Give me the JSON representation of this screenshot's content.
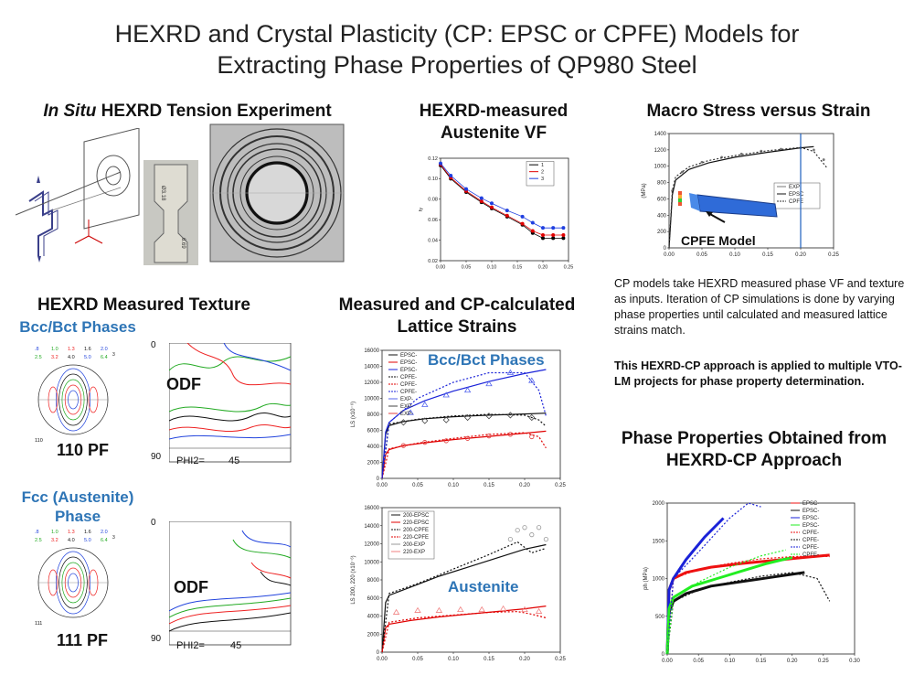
{
  "title": {
    "line1": "HEXRD and Crystal Plasticity (CP: EPSC or CPFE) Models for",
    "line2": "Extracting Phase Properties of QP980 Steel"
  },
  "experiment": {
    "title_italic": "In Situ",
    "title_rest": " HEXRD Tension Experiment"
  },
  "vf_chart": {
    "title_line1": "HEXRD-measured",
    "title_line2": "Austenite VF"
  },
  "macro": {
    "title": "Macro Stress versus Strain",
    "cpfe_model_label": "CPFE Model"
  },
  "texture": {
    "title": "HEXRD Measured Texture",
    "bcc_label": "Bcc/Bct Phases",
    "fcc_label_line1": "Fcc (Austenite)",
    "fcc_label_line2": "Phase",
    "pf110": "110 PF",
    "pf111": "111 PF",
    "odf_label": "ODF",
    "phi2_label": "PHI2=",
    "phi2_value": "45",
    "odf_axis_top": "0",
    "odf_axis_bottom": "90",
    "pf_legend_values": [
      ".8",
      "1.0",
      "1.3",
      "1.6",
      "2.0",
      "2.5",
      "3.2",
      "4.0",
      "5.0",
      "6.4"
    ],
    "pf_legend_extra": "3",
    "pf110_tag": "110",
    "pf111_tag": "111"
  },
  "lattice": {
    "title_line1": "Measured and CP-calculated",
    "title_line2": "Lattice Strains",
    "bcc_label": "Bcc/Bct Phases",
    "austenite_label": "Austenite"
  },
  "description": {
    "para1": "CP models take HEXRD measured phase VF and texture as inputs. Iteration of CP simulations is done by varying phase properties until calculated and measured lattice strains match.",
    "para2": "This HEXRD-CP approach is applied to multiple VTO-LM projects for phase property determination."
  },
  "phase_props": {
    "title_line1": "Phase Properties Obtained from",
    "title_line2": "HEXRD-CP Approach"
  },
  "chart_data": [
    {
      "type": "scatter",
      "name": "vf",
      "xlabel": "",
      "ylabel": "fγ",
      "xlim": [
        0,
        0.25
      ],
      "ylim": [
        0.02,
        0.12
      ],
      "xticks": [
        "0.00",
        "0.05",
        "0.10",
        "0.15",
        "0.20",
        "0.25"
      ],
      "yticks": [
        "0.02",
        "0.04",
        "0.06",
        "0.08",
        "0.10",
        "0.12"
      ],
      "legend": [
        "1",
        "2",
        "3"
      ],
      "series": [
        {
          "name": "1",
          "color": "#000000",
          "x": [
            0,
            0.02,
            0.05,
            0.08,
            0.1,
            0.13,
            0.16,
            0.18,
            0.2,
            0.22,
            0.24
          ],
          "y": [
            0.113,
            0.1,
            0.087,
            0.077,
            0.071,
            0.063,
            0.055,
            0.047,
            0.042,
            0.042,
            0.042
          ]
        },
        {
          "name": "2",
          "color": "#e00000",
          "x": [
            0,
            0.02,
            0.05,
            0.08,
            0.1,
            0.13,
            0.16,
            0.18,
            0.2,
            0.22,
            0.24
          ],
          "y": [
            0.114,
            0.101,
            0.088,
            0.078,
            0.072,
            0.064,
            0.056,
            0.049,
            0.045,
            0.045,
            0.045
          ]
        },
        {
          "name": "3",
          "color": "#1f3fe0",
          "x": [
            0,
            0.02,
            0.05,
            0.08,
            0.1,
            0.13,
            0.16,
            0.18,
            0.2,
            0.22,
            0.24
          ],
          "y": [
            0.115,
            0.103,
            0.09,
            0.081,
            0.076,
            0.069,
            0.063,
            0.057,
            0.052,
            0.052,
            0.052
          ]
        }
      ]
    },
    {
      "type": "line",
      "name": "macro",
      "xlabel": "",
      "ylabel": "(MPa)",
      "xlim": [
        0,
        0.25
      ],
      "ylim": [
        0,
        1400
      ],
      "xticks": [
        "0.00",
        "0.05",
        "0.10",
        "0.15",
        "0.20",
        "0.25"
      ],
      "yticks": [
        "0",
        "200",
        "400",
        "600",
        "800",
        "1000",
        "1200",
        "1400"
      ],
      "legend": [
        "EXP",
        "EPSC",
        "CPFE"
      ],
      "series": [
        {
          "name": "EXP",
          "style": "dots",
          "color": "#777777",
          "x": [
            0.005,
            0.02,
            0.05,
            0.08,
            0.11,
            0.14,
            0.17,
            0.2,
            0.22,
            0.235
          ],
          "y": [
            700,
            930,
            1050,
            1110,
            1150,
            1185,
            1210,
            1225,
            1200,
            1080
          ]
        },
        {
          "name": "EPSC",
          "style": "solid",
          "color": "#111111",
          "x": [
            0,
            0.005,
            0.01,
            0.03,
            0.06,
            0.1,
            0.15,
            0.2,
            0.22
          ],
          "y": [
            0,
            650,
            830,
            960,
            1040,
            1110,
            1170,
            1225,
            1240
          ]
        },
        {
          "name": "CPFE",
          "style": "dotted",
          "color": "#333333",
          "x": [
            0,
            0.005,
            0.01,
            0.03,
            0.06,
            0.1,
            0.15,
            0.2,
            0.22,
            0.24
          ],
          "y": [
            0,
            700,
            870,
            990,
            1070,
            1130,
            1190,
            1230,
            1180,
            980
          ]
        }
      ]
    },
    {
      "type": "line",
      "name": "lattice_bcc",
      "xlabel": "",
      "ylabel": "LS (x10⁻⁶)",
      "xlim": [
        0,
        0.25
      ],
      "ylim": [
        0,
        16000
      ],
      "xticks": [
        "0.00",
        "0.05",
        "0.10",
        "0.15",
        "0.20",
        "0.25"
      ],
      "yticks": [
        "0",
        "2000",
        "4000",
        "6000",
        "8000",
        "10000",
        "12000",
        "14000",
        "16000"
      ],
      "legend": [
        "EPSC-",
        "EPSC-",
        "EPSC-",
        "CPFE-",
        "CPFE-",
        "CPFE-",
        "EXP-",
        "EXP-",
        "EXP-"
      ],
      "series": [
        {
          "name": "EPSC-black",
          "style": "solid",
          "color": "#111111",
          "x": [
            0,
            0.005,
            0.01,
            0.03,
            0.06,
            0.1,
            0.15,
            0.2,
            0.23
          ],
          "y": [
            0,
            5500,
            6600,
            7100,
            7450,
            7700,
            7900,
            8050,
            8150
          ]
        },
        {
          "name": "EPSC-red",
          "style": "solid",
          "color": "#e00000",
          "x": [
            0,
            0.005,
            0.01,
            0.03,
            0.06,
            0.1,
            0.15,
            0.2,
            0.23
          ],
          "y": [
            0,
            3000,
            3600,
            4100,
            4450,
            4850,
            5250,
            5650,
            5900
          ]
        },
        {
          "name": "EPSC-blue",
          "style": "solid",
          "color": "#1a22d8",
          "x": [
            0,
            0.005,
            0.01,
            0.03,
            0.06,
            0.1,
            0.15,
            0.2,
            0.23
          ],
          "y": [
            0,
            5800,
            7000,
            8500,
            9700,
            10900,
            12100,
            13100,
            13600
          ]
        },
        {
          "name": "CPFE-black",
          "style": "dotted",
          "color": "#111111",
          "x": [
            0,
            0.01,
            0.05,
            0.1,
            0.15,
            0.2,
            0.22,
            0.23
          ],
          "y": [
            0,
            6800,
            7400,
            7800,
            8000,
            7900,
            7300,
            6500
          ]
        },
        {
          "name": "CPFE-red",
          "style": "dotted",
          "color": "#e00000",
          "x": [
            0,
            0.01,
            0.05,
            0.1,
            0.15,
            0.2,
            0.22,
            0.23
          ],
          "y": [
            0,
            3700,
            4400,
            5000,
            5500,
            5700,
            5200,
            3800
          ]
        },
        {
          "name": "CPFE-blue",
          "style": "dotted",
          "color": "#1a22d8",
          "x": [
            0,
            0.01,
            0.05,
            0.1,
            0.15,
            0.2,
            0.22,
            0.23
          ],
          "y": [
            0,
            7000,
            10000,
            12000,
            13200,
            13200,
            11000,
            7800
          ]
        },
        {
          "name": "EXP-blue",
          "style": "tri",
          "color": "#5566ee",
          "x": [
            0.04,
            0.06,
            0.09,
            0.12,
            0.15,
            0.18,
            0.21
          ],
          "y": [
            8200,
            9200,
            10400,
            11000,
            11800,
            13200,
            12200
          ]
        },
        {
          "name": "EXP-black",
          "style": "diamond",
          "color": "#444444",
          "x": [
            0.03,
            0.06,
            0.09,
            0.12,
            0.15,
            0.18,
            0.21
          ],
          "y": [
            7000,
            7200,
            7300,
            7600,
            7800,
            7900,
            7600
          ]
        },
        {
          "name": "EXP-red",
          "style": "circle",
          "color": "#e04040",
          "x": [
            0.03,
            0.06,
            0.09,
            0.12,
            0.15,
            0.18,
            0.21
          ],
          "y": [
            4100,
            4500,
            4700,
            5000,
            5300,
            5500,
            5200
          ]
        }
      ]
    },
    {
      "type": "line",
      "name": "lattice_fcc",
      "xlabel": "",
      "ylabel": "LS 200, 220 (x10⁻⁶)",
      "xlim": [
        0,
        0.25
      ],
      "ylim": [
        0,
        16000
      ],
      "xticks": [
        "0.00",
        "0.05",
        "0.10",
        "0.15",
        "0.20",
        "0.25"
      ],
      "yticks": [
        "0",
        "2000",
        "4000",
        "6000",
        "8000",
        "10000",
        "12000",
        "14000",
        "16000"
      ],
      "legend": [
        "200-EPSC",
        "220-EPSC",
        "200-CPFE",
        "220-CPFE",
        "200-EXP",
        "220-EXP"
      ],
      "series": [
        {
          "name": "200-EPSC",
          "style": "solid",
          "color": "#111111",
          "x": [
            0,
            0.005,
            0.01,
            0.04,
            0.08,
            0.12,
            0.16,
            0.2,
            0.23
          ],
          "y": [
            0,
            5500,
            6300,
            7200,
            8400,
            9400,
            10400,
            11400,
            11900
          ]
        },
        {
          "name": "220-EPSC",
          "style": "solid",
          "color": "#e00000",
          "x": [
            0,
            0.005,
            0.01,
            0.04,
            0.08,
            0.12,
            0.16,
            0.2,
            0.23
          ],
          "y": [
            0,
            2700,
            3100,
            3500,
            3900,
            4200,
            4500,
            4800,
            5100
          ]
        },
        {
          "name": "200-CPFE",
          "style": "dotted",
          "color": "#111111",
          "x": [
            0,
            0.01,
            0.05,
            0.1,
            0.15,
            0.19,
            0.21,
            0.23
          ],
          "y": [
            0,
            6500,
            7600,
            9200,
            10800,
            12200,
            11000,
            11500
          ]
        },
        {
          "name": "220-CPFE",
          "style": "dotted",
          "color": "#e00000",
          "x": [
            0,
            0.01,
            0.05,
            0.1,
            0.15,
            0.19,
            0.21,
            0.23
          ],
          "y": [
            0,
            3300,
            3800,
            4100,
            4400,
            4500,
            4200,
            3800
          ]
        },
        {
          "name": "200-EXP",
          "style": "circle",
          "color": "#999999",
          "x": [
            0.18,
            0.19,
            0.2,
            0.21,
            0.22,
            0.23
          ],
          "y": [
            12500,
            13500,
            13800,
            13000,
            13800,
            12500
          ]
        },
        {
          "name": "220-EXP",
          "style": "tri",
          "color": "#f08080",
          "x": [
            0.02,
            0.05,
            0.08,
            0.11,
            0.14,
            0.17,
            0.2,
            0.22
          ],
          "y": [
            4400,
            4600,
            4600,
            4700,
            4700,
            4800,
            4700,
            4500
          ]
        }
      ]
    },
    {
      "type": "line",
      "name": "phase_props",
      "xlabel": "",
      "ylabel": "ph (MPa)",
      "xlim": [
        0,
        0.3
      ],
      "ylim": [
        0,
        2000
      ],
      "xticks": [
        "0.00",
        "0.05",
        "0.10",
        "0.15",
        "0.20",
        "0.25",
        "0.30"
      ],
      "yticks": [
        "0",
        "500",
        "1000",
        "1500",
        "2000"
      ],
      "legend": [
        "EPSC-",
        "EPSC-",
        "EPSC-",
        "EPSC-",
        "CPFE-",
        "CPFE-",
        "CPFE-",
        "CPFE-"
      ],
      "series": [
        {
          "name": "EPSC-red",
          "style": "fat",
          "color": "#ee1111",
          "x": [
            0,
            0.003,
            0.01,
            0.03,
            0.07,
            0.12,
            0.17,
            0.22,
            0.26
          ],
          "y": [
            0,
            850,
            1000,
            1080,
            1150,
            1200,
            1240,
            1280,
            1310
          ]
        },
        {
          "name": "EPSC-black",
          "style": "fat",
          "color": "#111111",
          "x": [
            0,
            0.003,
            0.01,
            0.03,
            0.07,
            0.12,
            0.17,
            0.22
          ],
          "y": [
            0,
            550,
            700,
            800,
            900,
            960,
            1020,
            1080
          ]
        },
        {
          "name": "EPSC-blue",
          "style": "fat",
          "color": "#1a22d8",
          "x": [
            0,
            0.003,
            0.01,
            0.03,
            0.06,
            0.09
          ],
          "y": [
            0,
            850,
            1000,
            1250,
            1550,
            1800
          ]
        },
        {
          "name": "EPSC-green",
          "style": "fat",
          "color": "#22ee22",
          "x": [
            0,
            0.003,
            0.01,
            0.04,
            0.08,
            0.12,
            0.16,
            0.2
          ],
          "y": [
            0,
            600,
            750,
            900,
            1000,
            1100,
            1200,
            1280
          ]
        },
        {
          "name": "CPFE-red",
          "style": "dotted",
          "color": "#ee1111",
          "x": [
            0,
            0.01,
            0.05,
            0.1,
            0.15,
            0.2,
            0.24,
            0.26
          ],
          "y": [
            0,
            1000,
            1120,
            1200,
            1260,
            1290,
            1300,
            1290
          ]
        },
        {
          "name": "CPFE-black",
          "style": "dotted",
          "color": "#111111",
          "x": [
            0,
            0.01,
            0.05,
            0.1,
            0.15,
            0.2,
            0.24,
            0.26
          ],
          "y": [
            0,
            700,
            850,
            950,
            1030,
            1080,
            1000,
            700
          ]
        },
        {
          "name": "CPFE-blue",
          "style": "dotted",
          "color": "#1a22d8",
          "x": [
            0,
            0.01,
            0.05,
            0.1,
            0.13,
            0.15
          ],
          "y": [
            0,
            1000,
            1350,
            1800,
            2000,
            1950
          ]
        },
        {
          "name": "CPFE-green",
          "style": "dotted",
          "color": "#22ee22",
          "x": [
            0,
            0.01,
            0.05,
            0.1,
            0.15,
            0.19
          ],
          "y": [
            0,
            750,
            950,
            1150,
            1300,
            1380
          ]
        }
      ]
    }
  ]
}
